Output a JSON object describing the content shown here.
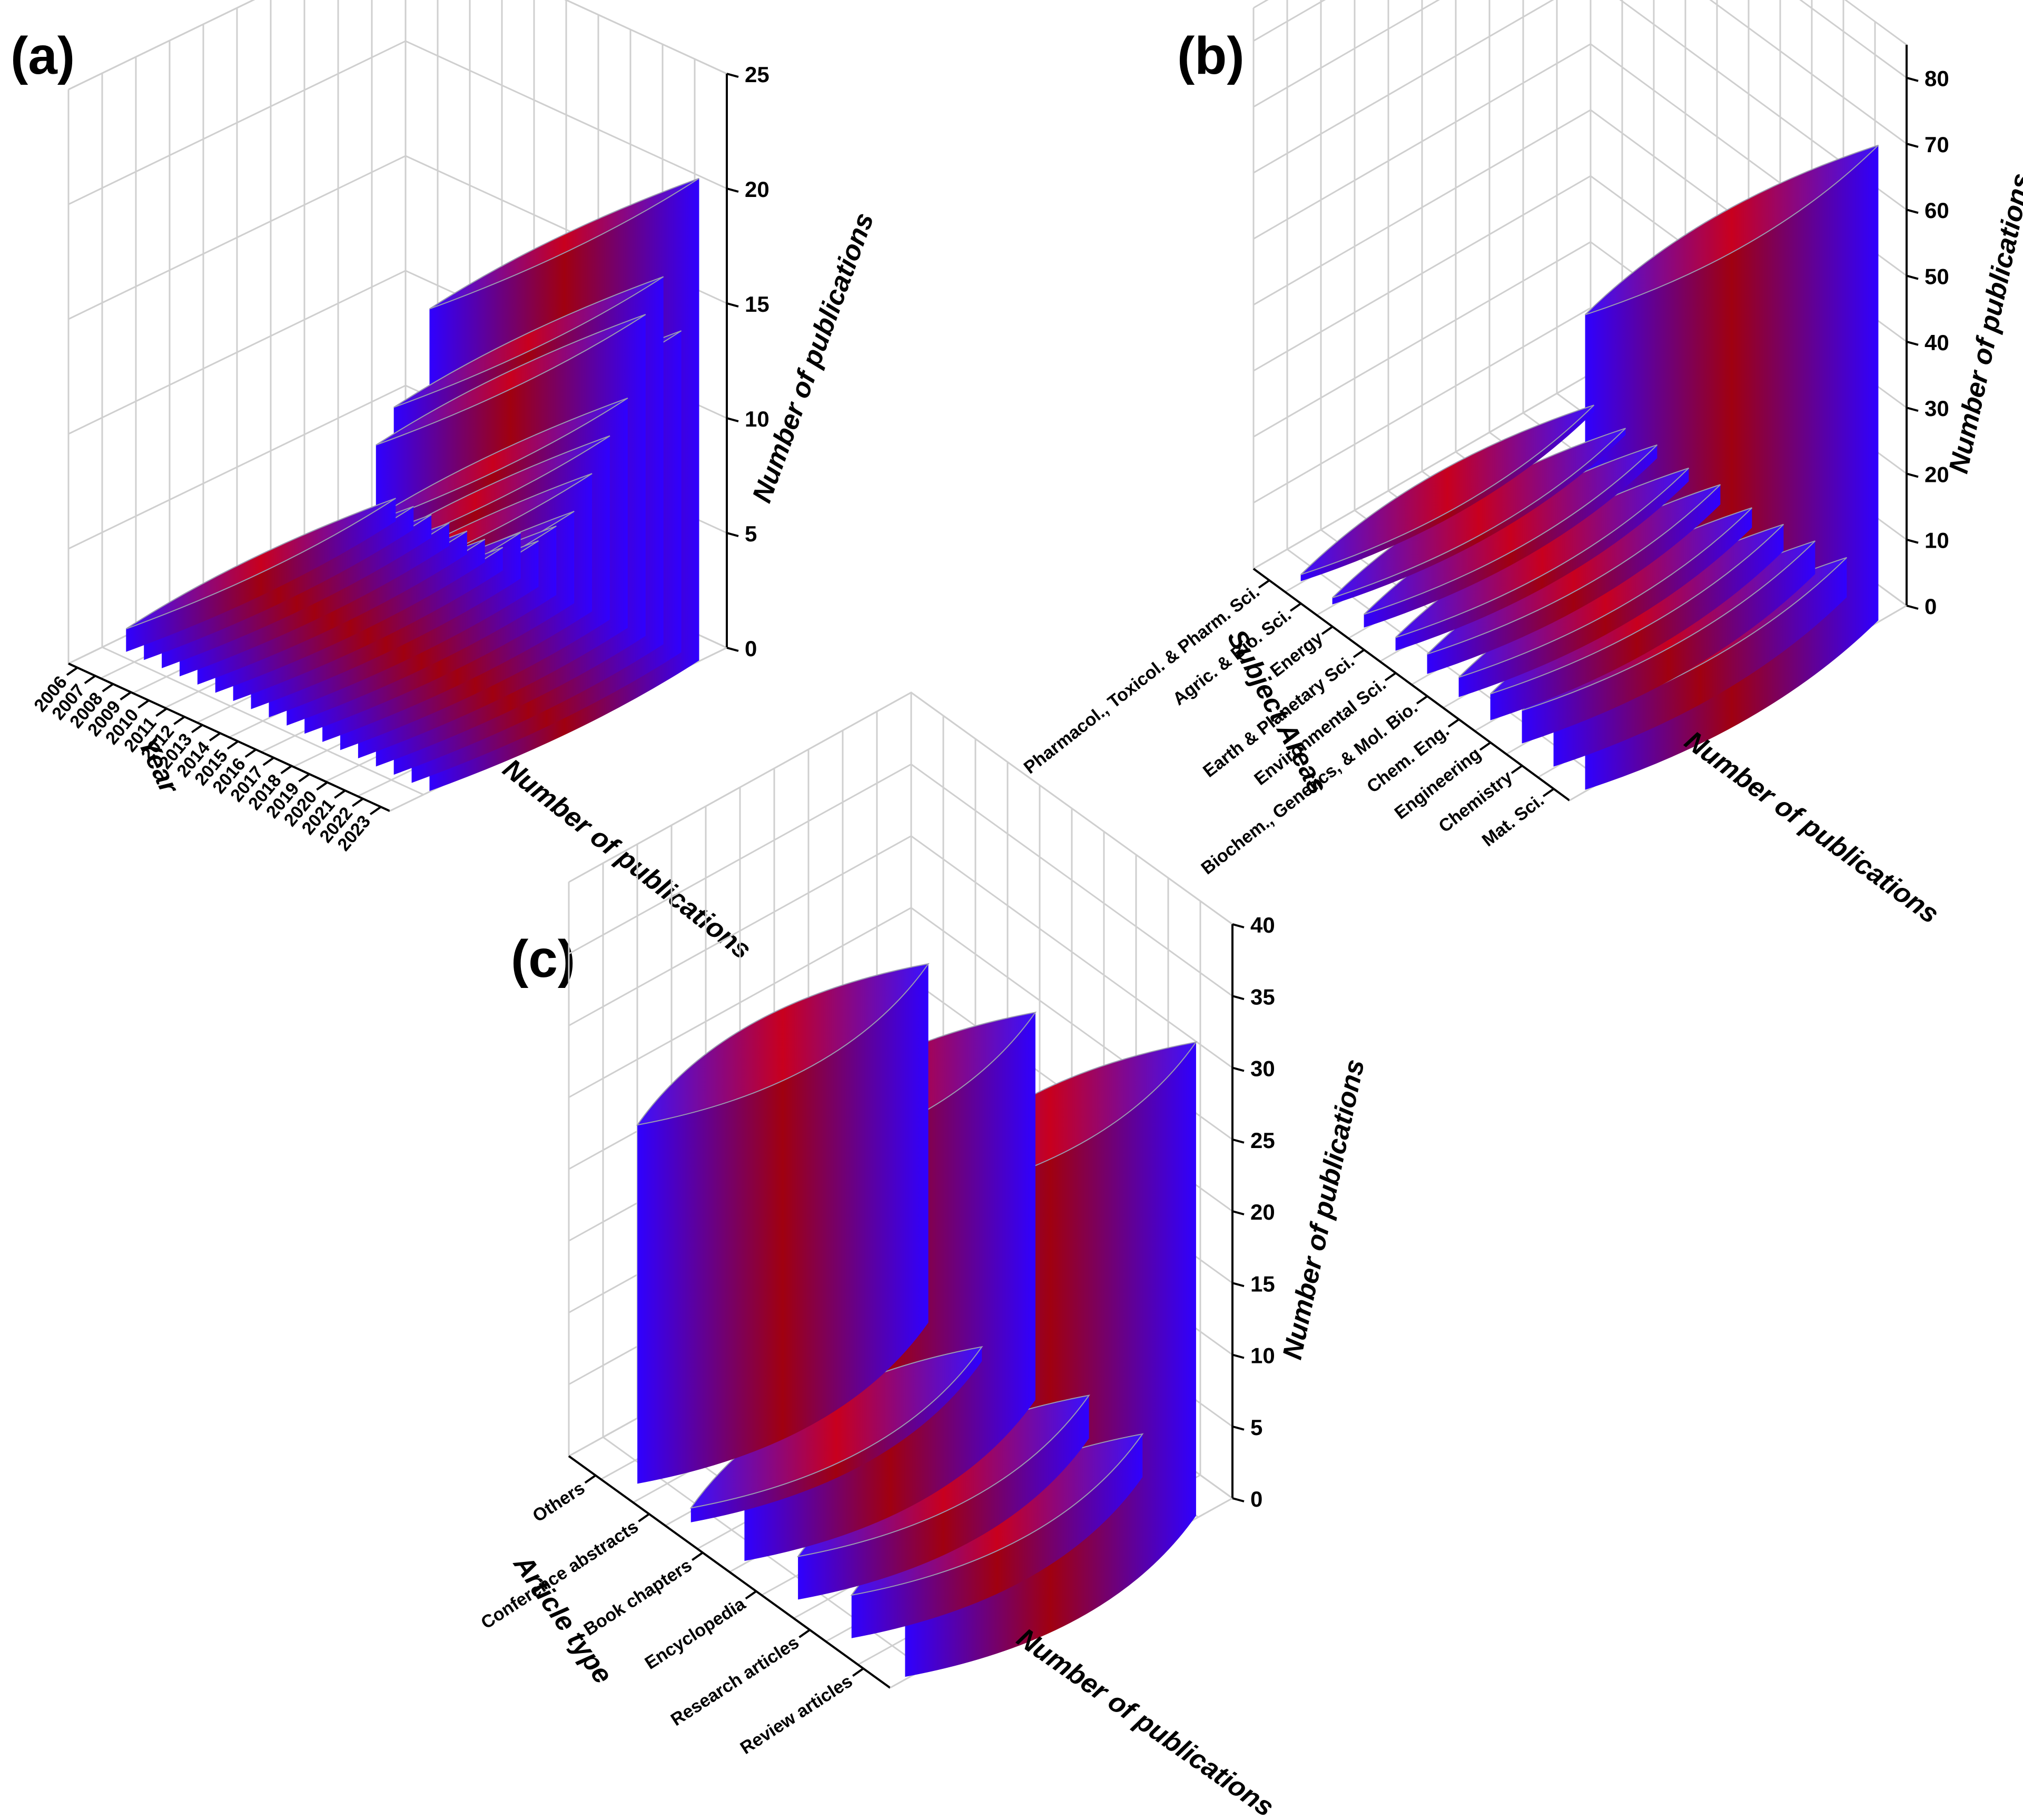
{
  "colors": {
    "edge": "#2f00ff",
    "center": "#a00010",
    "grid": "#cfcfcf",
    "axis": "#000000"
  },
  "chart_data": [
    {
      "panel": "(a)",
      "type": "bar",
      "style": "3d-cylinder",
      "categories": [
        "2006",
        "2007",
        "2008",
        "2009",
        "2010",
        "2011",
        "2012",
        "2013",
        "2014",
        "2015",
        "2016",
        "2017",
        "2018",
        "2019",
        "2020",
        "2021",
        "2022",
        "2023"
      ],
      "values": [
        1,
        1,
        1,
        1,
        1,
        1,
        1,
        2,
        2,
        3,
        4,
        6,
        8,
        10,
        14,
        16,
        14,
        21
      ],
      "xlabel": "Year",
      "ylabel": "Number of publications",
      "depth_label": "Number of publications",
      "ylim": [
        0,
        25
      ],
      "yticks": [
        0,
        5,
        10,
        15,
        20,
        25
      ]
    },
    {
      "panel": "(b)",
      "type": "bar",
      "style": "3d-cylinder",
      "categories": [
        "Pharmacol., Toxicol. & Pharm. Sci.",
        "Agric. & Bio. Sci.",
        "Energy",
        "Earth & Planetary Sci.",
        "Environmental Sci.",
        "Biochem., Genetics, & Mol. Bio.",
        "Chem. Eng.",
        "Engineering",
        "Chemistry",
        "Mat. Sci."
      ],
      "values": [
        1,
        1,
        2,
        2,
        3,
        3,
        4,
        5,
        6,
        72
      ],
      "xlabel": "Subject Areas",
      "ylabel": "Number of publications",
      "depth_label": "Number of publications",
      "ylim": [
        0,
        85
      ],
      "yticks": [
        0,
        10,
        20,
        30,
        40,
        50,
        60,
        70,
        80
      ]
    },
    {
      "panel": "(c)",
      "type": "bar",
      "style": "3d-cylinder",
      "categories": [
        "Others",
        "Conference abstracts",
        "Book chapters",
        "Encyclopedia",
        "Research articles",
        "Review articles"
      ],
      "values": [
        25,
        1,
        27,
        3,
        3,
        33
      ],
      "xlabel": "Article type",
      "ylabel": "Number of publications",
      "depth_label": "Number of publications",
      "ylim": [
        0,
        40
      ],
      "yticks": [
        0,
        5,
        10,
        15,
        20,
        25,
        30,
        35,
        40
      ]
    }
  ]
}
